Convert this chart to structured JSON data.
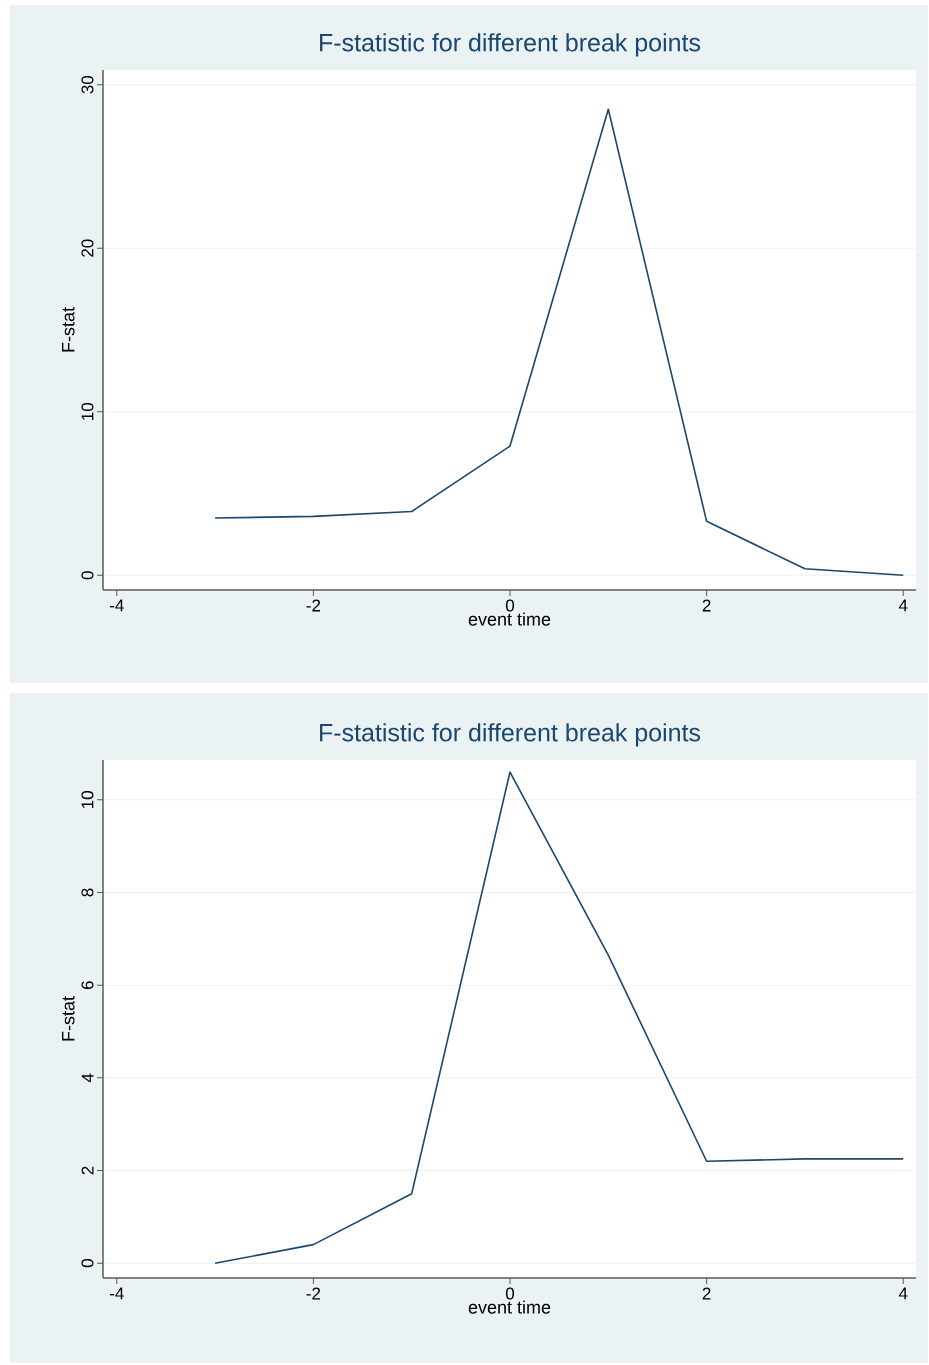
{
  "chart_data": [
    {
      "type": "line",
      "title": "F-statistic for different break points",
      "xlabel": "event time",
      "ylabel": "F-stat",
      "x": [
        -3,
        -2,
        -1,
        0,
        1,
        2,
        3,
        4
      ],
      "values": [
        3.5,
        3.6,
        3.9,
        7.9,
        28.5,
        3.3,
        0.4,
        0
      ],
      "color": "#1a476f",
      "xlim": [
        -4.14,
        4.13
      ],
      "ylim": [
        -0.9,
        30.9
      ],
      "xticks": [
        -4,
        -2,
        0,
        2,
        4
      ],
      "yticks": [
        0,
        10,
        20,
        30
      ],
      "grid": "y"
    },
    {
      "type": "line",
      "title": "F-statistic for different break points",
      "xlabel": "event time",
      "ylabel": "F-stat",
      "x": [
        -3,
        -2,
        -1,
        0,
        1,
        2,
        3,
        4
      ],
      "values": [
        0,
        0.4,
        1.5,
        10.6,
        6.65,
        2.2,
        2.25,
        2.25
      ],
      "color": "#1a476f",
      "xlim": [
        -4.14,
        4.13
      ],
      "ylim": [
        -0.32,
        10.86
      ],
      "xticks": [
        -4,
        -2,
        0,
        2,
        4
      ],
      "yticks": [
        0,
        2,
        4,
        6,
        8,
        10
      ],
      "grid": "y"
    }
  ]
}
